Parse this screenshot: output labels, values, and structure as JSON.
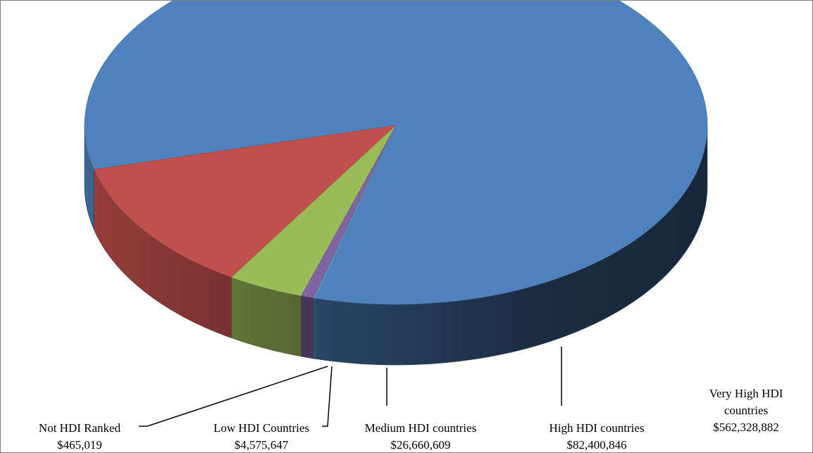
{
  "chart_data": {
    "type": "pie",
    "variant": "3d",
    "title": "",
    "legend": "none",
    "label_style": "category and value below the pie with leader lines",
    "slices": [
      {
        "name": "Very High HDI countries",
        "label_lines": [
          "Very High HDI",
          "countries"
        ],
        "value": 562328882,
        "value_label": "$562,328,882",
        "color": "#4f81bd"
      },
      {
        "name": "High HDI countries",
        "label_lines": [
          "High HDI countries"
        ],
        "value": 82400846,
        "value_label": "$82,400,846",
        "color": "#c0504d"
      },
      {
        "name": "Medium HDI countries",
        "label_lines": [
          "Medium HDI countries"
        ],
        "value": 26660609,
        "value_label": "$26,660,609",
        "color": "#9bbb59"
      },
      {
        "name": "Low HDI Countries",
        "label_lines": [
          "Low HDI Countries"
        ],
        "value": 4575647,
        "value_label": "$4,575,647",
        "color": "#8064a2"
      },
      {
        "name": "Not HDI Ranked",
        "label_lines": [
          "Not HDI Ranked"
        ],
        "value": 465019,
        "value_label": "$465,019",
        "color": "#4bacc6"
      }
    ]
  }
}
